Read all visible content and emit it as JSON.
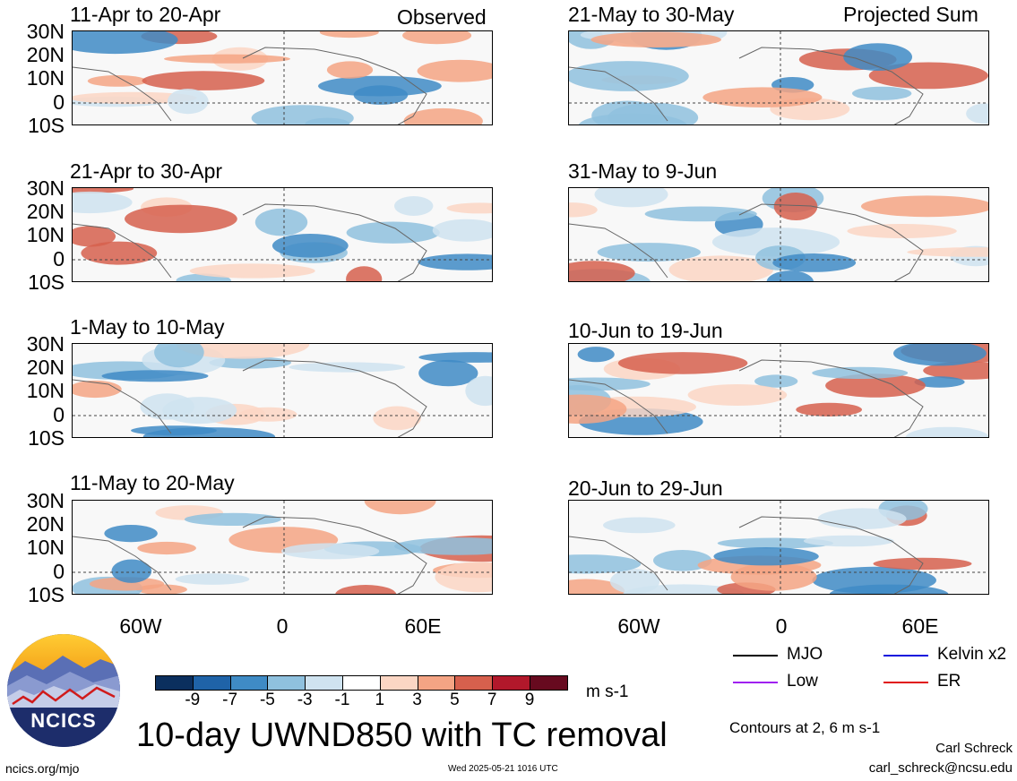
{
  "header": {
    "observed_label": "Observed",
    "projected_label": "Projected Sum"
  },
  "panels": [
    {
      "period": "11-Apr to 20-Apr"
    },
    {
      "period": "21-Apr to 30-Apr"
    },
    {
      "period": "1-May to 10-May"
    },
    {
      "period": "11-May to 20-May"
    },
    {
      "period": "21-May to 30-May"
    },
    {
      "period": "31-May to 9-Jun"
    },
    {
      "period": "10-Jun to 19-Jun"
    },
    {
      "period": "20-Jun to 29-Jun"
    }
  ],
  "y_axis_labels": [
    "30N",
    "20N",
    "10N",
    "0",
    "10S"
  ],
  "x_axis_labels": [
    "60W",
    "0",
    "60E"
  ],
  "colorbar": {
    "labels": [
      "-9",
      "-7",
      "-5",
      "-3",
      "-1",
      "1",
      "3",
      "5",
      "7",
      "9"
    ],
    "colors": [
      "#0b2f5e",
      "#1f63a8",
      "#3f8bc5",
      "#8fc1de",
      "#cfe3f0",
      "#ffffff",
      "#fbd6c4",
      "#f4a484",
      "#d6604d",
      "#b2182b",
      "#670a1f"
    ],
    "units": "m s-1"
  },
  "legend": {
    "items": [
      {
        "label": "MJO",
        "color": "#000000"
      },
      {
        "label": "Kelvin x2",
        "color": "#1010dd"
      },
      {
        "label": "Low",
        "color": "#a020f0"
      },
      {
        "label": "ER",
        "color": "#e01010"
      }
    ],
    "contours_note": "Contours at 2, 6 m s-1"
  },
  "footer": {
    "title": "10-day UWND850 with TC removal",
    "url": "ncics.org/mjo",
    "timestamp": "Wed 2025-05-21 1016 UTC",
    "author": "Carl Schreck",
    "email": "carl_schreck@ncsu.edu",
    "logo_text": "NCICS"
  }
}
